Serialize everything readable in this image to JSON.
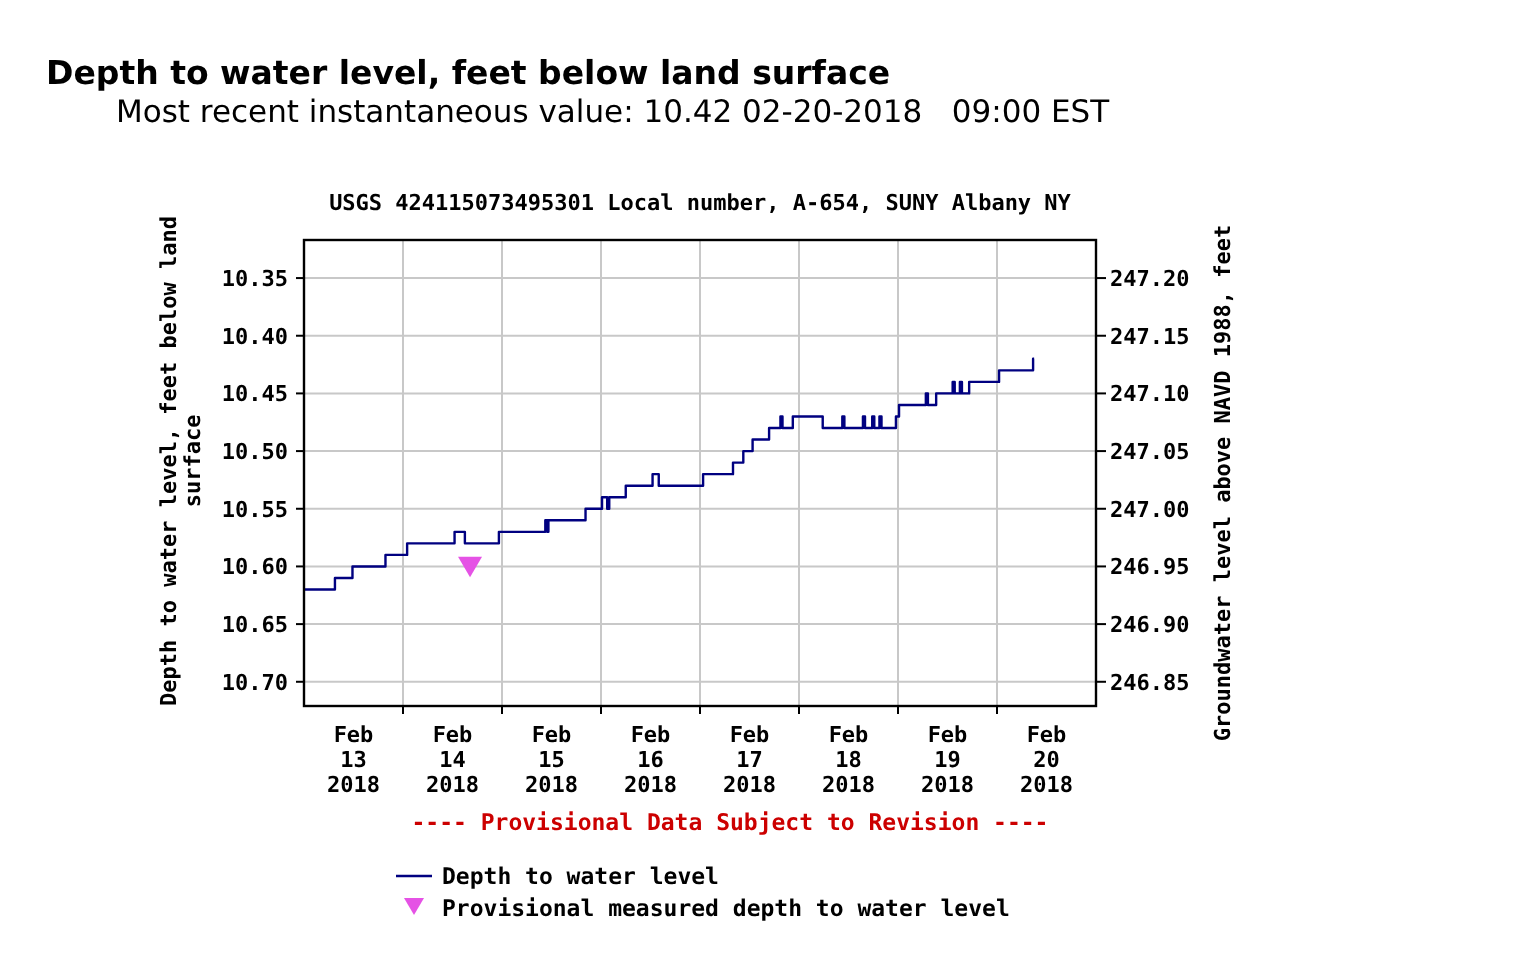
{
  "chart_data": {
    "type": "step",
    "title": "Depth to water level, feet below land surface",
    "subtitle": "Most recent instantaneous value: 10.42 02-20-2018   09:00 EST",
    "annotations": [
      "USGS 424115073495301 Local number, A-654, SUNY Albany NY",
      "---- Provisional Data Subject to Revision ----"
    ],
    "ylabel": "Depth to water level, feet below land surface",
    "y2label": "Groundwater level above NAVD 1988, feet",
    "xlim": [
      "2018-02-13",
      "2018-02-21"
    ],
    "xticks": [
      {
        "value": "2018-02-13T12:00",
        "label": "Feb\n13\n2018"
      },
      {
        "value": "2018-02-14",
        "label": null
      },
      {
        "value": "2018-02-14T12:00",
        "label": "Feb\n14\n2018"
      },
      {
        "value": "2018-02-15",
        "label": null
      },
      {
        "value": "2018-02-15T12:00",
        "label": "Feb\n15\n2018"
      },
      {
        "value": "2018-02-16",
        "label": null
      },
      {
        "value": "2018-02-16T12:00",
        "label": "Feb\n16\n2018"
      },
      {
        "value": "2018-02-17",
        "label": null
      },
      {
        "value": "2018-02-17T12:00",
        "label": "Feb\n17\n2018"
      },
      {
        "value": "2018-02-18",
        "label": null
      },
      {
        "value": "2018-02-18T12:00",
        "label": "Feb\n18\n2018"
      },
      {
        "value": "2018-02-19",
        "label": null
      },
      {
        "value": "2018-02-19T12:00",
        "label": "Feb\n19\n2018"
      },
      {
        "value": "2018-02-20",
        "label": null
      },
      {
        "value": "2018-02-20T12:00",
        "label": "Feb\n20\n2018"
      }
    ],
    "ylim": [
      10.721,
      10.317
    ],
    "yticks": [
      10.35,
      {
        "value": 10.4,
        "label": "10.40"
      },
      10.45,
      {
        "value": 10.5,
        "label": "10.50"
      },
      10.55,
      {
        "value": 10.6,
        "label": "10.60"
      },
      10.65,
      {
        "value": 10.7,
        "label": "10.70"
      }
    ],
    "y2lim": [
      246.829,
      247.233
    ],
    "y2ticks": [
      {
        "value": 246.85,
        "label": "246.85"
      },
      {
        "value": 246.9,
        "label": "246.90"
      },
      {
        "value": 246.95,
        "label": "246.95"
      },
      {
        "value": 247.0,
        "label": "247.00"
      },
      {
        "value": 247.05,
        "label": "247.05"
      },
      {
        "value": 247.1,
        "label": "247.10"
      },
      {
        "value": 247.15,
        "label": "247.15"
      },
      {
        "value": 247.2,
        "label": "247.20"
      }
    ],
    "grid": true,
    "legend": "bottom",
    "series": [
      {
        "name": "Depth to water level",
        "color": "#000080",
        "x": [
          "2018-02-13T00:00",
          "2018-02-13T07:30",
          "2018-02-13T11:45",
          "2018-02-13T19:45",
          "2018-02-14T01:00",
          "2018-02-14T12:30",
          "2018-02-14T15:00",
          "2018-02-14T23:15",
          "2018-02-15T10:30",
          "2018-02-15T11:00",
          "2018-02-15T11:15",
          "2018-02-15T20:15",
          "2018-02-16T00:15",
          "2018-02-16T01:30",
          "2018-02-16T02:00",
          "2018-02-16T06:00",
          "2018-02-16T12:30",
          "2018-02-16T14:00",
          "2018-02-17T00:45",
          "2018-02-17T08:00",
          "2018-02-17T10:30",
          "2018-02-17T12:45",
          "2018-02-17T16:45",
          "2018-02-17T19:30",
          "2018-02-17T20:00",
          "2018-02-17T22:30",
          "2018-02-18T05:45",
          "2018-02-18T10:30",
          "2018-02-18T11:00",
          "2018-02-18T15:30",
          "2018-02-18T16:00",
          "2018-02-18T17:45",
          "2018-02-18T18:15",
          "2018-02-18T19:30",
          "2018-02-18T20:00",
          "2018-02-18T23:30",
          "2018-02-19T00:15",
          "2018-02-19T06:45",
          "2018-02-19T07:15",
          "2018-02-19T09:15",
          "2018-02-19T13:15",
          "2018-02-19T13:45",
          "2018-02-19T15:00",
          "2018-02-19T15:30",
          "2018-02-19T17:15",
          "2018-02-20T00:30",
          "2018-02-20T08:45",
          "2018-02-20T09:00"
        ],
        "values": [
          10.62,
          10.61,
          10.6,
          10.59,
          10.58,
          10.57,
          10.58,
          10.57,
          10.56,
          10.57,
          10.56,
          10.55,
          10.54,
          10.55,
          10.54,
          10.53,
          10.52,
          10.53,
          10.52,
          10.51,
          10.5,
          10.49,
          10.48,
          10.47,
          10.48,
          10.47,
          10.48,
          10.47,
          10.48,
          10.47,
          10.48,
          10.47,
          10.48,
          10.47,
          10.48,
          10.47,
          10.46,
          10.45,
          10.46,
          10.45,
          10.44,
          10.45,
          10.44,
          10.45,
          10.44,
          10.43,
          10.42,
          10.42
        ]
      },
      {
        "name": "Provisional measured depth to water level",
        "type": "scatter",
        "marker": "triangle",
        "color": "#e552e5",
        "x": [
          "2018-02-14T16:15"
        ],
        "values": [
          10.6
        ]
      }
    ]
  }
}
